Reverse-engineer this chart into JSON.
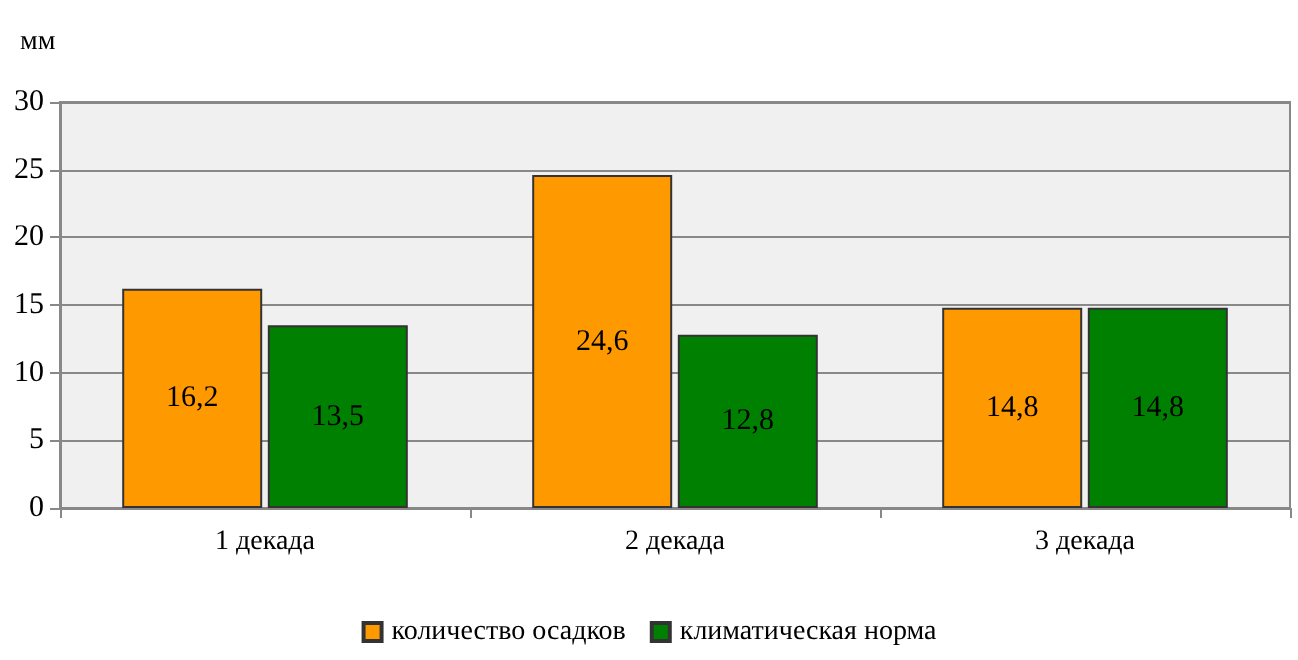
{
  "chart_data": {
    "type": "bar",
    "ylabel": "мм",
    "categories": [
      "1 декада",
      "2 декада",
      "3 декада"
    ],
    "series": [
      {
        "name": "количество осадков",
        "color": "#ff9900",
        "values": [
          16.2,
          24.6,
          14.8
        ],
        "value_labels": [
          "16,2",
          "24,6",
          "14,8"
        ]
      },
      {
        "name": "климатическая норма",
        "color": "#008000",
        "values": [
          13.5,
          12.8,
          14.8
        ],
        "value_labels": [
          "13,5",
          "12,8",
          "14,8"
        ]
      }
    ],
    "ylim": [
      0,
      30
    ],
    "yticks": [
      0,
      5,
      10,
      15,
      20,
      25,
      30
    ],
    "grid": "y",
    "legend": "bottom"
  }
}
